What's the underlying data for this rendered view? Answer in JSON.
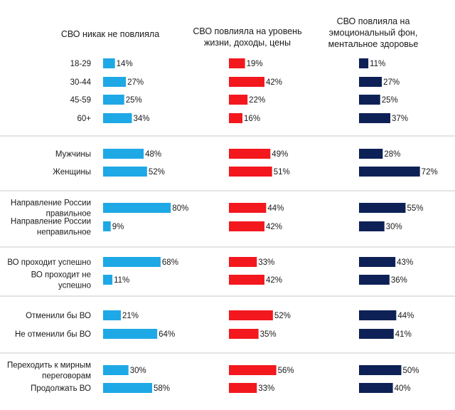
{
  "chart_data": {
    "type": "bar",
    "orientation": "horizontal",
    "unit": "%",
    "series": [
      {
        "name": "СВО никак не повлияла",
        "name_lines": [
          "СВО никак не повлияла"
        ],
        "color": "#1EA8E6",
        "values": [
          14,
          27,
          25,
          34,
          48,
          52,
          80,
          9,
          68,
          11,
          21,
          64,
          30,
          58
        ]
      },
      {
        "name": "СВО повлияла на уровень жизни, доходы, цены",
        "name_lines": [
          "СВО повлияла на уровень",
          "жизни, доходы, цены"
        ],
        "color": "#F2181E",
        "values": [
          19,
          42,
          22,
          16,
          49,
          51,
          44,
          42,
          33,
          42,
          52,
          35,
          56,
          33
        ]
      },
      {
        "name": "СВО повлияла на эмоциональный фон, ментальное здоровье",
        "name_lines": [
          "СВО повлияла на",
          "эмоциональный фон,",
          "ментальное здоровье"
        ],
        "color": "#0D2156",
        "values": [
          11,
          27,
          25,
          37,
          28,
          72,
          55,
          30,
          43,
          36,
          44,
          41,
          50,
          40
        ]
      }
    ],
    "groups": [
      {
        "rows": [
          {
            "label": [
              "18-29"
            ]
          },
          {
            "label": [
              "30-44"
            ]
          },
          {
            "label": [
              "45-59"
            ]
          },
          {
            "label": [
              "60+"
            ]
          }
        ]
      },
      {
        "rows": [
          {
            "label": [
              "Мужчины"
            ]
          },
          {
            "label": [
              "Женщины"
            ]
          }
        ]
      },
      {
        "rows": [
          {
            "label": [
              "Направление России",
              "правильное"
            ]
          },
          {
            "label": [
              "Направление России",
              "неправильное"
            ]
          }
        ]
      },
      {
        "rows": [
          {
            "label": [
              "ВО проходит успешно"
            ]
          },
          {
            "label": [
              "ВО проходит не",
              "успешно"
            ]
          }
        ]
      },
      {
        "rows": [
          {
            "label": [
              "Отменили бы ВО"
            ]
          },
          {
            "label": [
              "Не отменили бы ВО"
            ]
          }
        ]
      },
      {
        "rows": [
          {
            "label": [
              "Переходить к мирным",
              "переговорам"
            ]
          },
          {
            "label": [
              "Продолжать ВО"
            ]
          }
        ]
      }
    ]
  }
}
